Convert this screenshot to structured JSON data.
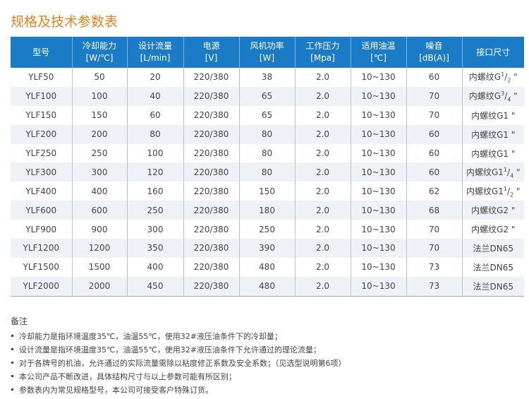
{
  "title": "规格及技术参数表",
  "headers": [
    [
      "型号",
      ""
    ],
    [
      "冷却能力",
      "[W/℃]"
    ],
    [
      "设计流量",
      "[L/min]"
    ],
    [
      "电源",
      "[V]"
    ],
    [
      "风机功率",
      "[W]"
    ],
    [
      "工作压力",
      "[Mpa]"
    ],
    [
      "适用油温",
      "[℃]"
    ],
    [
      "噪音",
      "[dB(A)]"
    ],
    [
      "接口尺寸",
      ""
    ]
  ],
  "rows": [
    {
      "model": "YLF50",
      "cool": "50",
      "flow": "20",
      "power": "220/380",
      "fan": "38",
      "pressure": "2.0",
      "temp": "10~130",
      "noise": "60",
      "port": {
        "pre": "内螺纹G",
        "num": "1",
        "den": "2",
        "post": " \""
      }
    },
    {
      "model": "YLF100",
      "cool": "100",
      "flow": "40",
      "power": "220/380",
      "fan": "65",
      "pressure": "2.0",
      "temp": "10~130",
      "noise": "70",
      "port": {
        "pre": "内螺纹G",
        "num": "3",
        "den": "4",
        "post": " \""
      }
    },
    {
      "model": "YLF150",
      "cool": "150",
      "flow": "60",
      "power": "220/380",
      "fan": "65",
      "pressure": "2.0",
      "temp": "10~130",
      "noise": "70",
      "port": {
        "pre": "内螺纹G1 \""
      }
    },
    {
      "model": "YLF200",
      "cool": "200",
      "flow": "80",
      "power": "220/380",
      "fan": "80",
      "pressure": "2.0",
      "temp": "10~130",
      "noise": "60",
      "port": {
        "pre": "内螺纹G1 \""
      }
    },
    {
      "model": "YLF250",
      "cool": "250",
      "flow": "100",
      "power": "220/380",
      "fan": "80",
      "pressure": "2.0",
      "temp": "10~130",
      "noise": "60",
      "port": {
        "pre": "内螺纹G1 \""
      }
    },
    {
      "model": "YLF300",
      "cool": "300",
      "flow": "120",
      "power": "220/380",
      "fan": "80",
      "pressure": "2.0",
      "temp": "10~130",
      "noise": "60",
      "port": {
        "pre": "内螺纹G1",
        "num": "1",
        "den": "4",
        "post": " \""
      }
    },
    {
      "model": "YLF400",
      "cool": "400",
      "flow": "160",
      "power": "220/380",
      "fan": "150",
      "pressure": "2.0",
      "temp": "10~130",
      "noise": "62",
      "port": {
        "pre": "内螺纹G1",
        "num": "1",
        "den": "2",
        "post": " \""
      }
    },
    {
      "model": "YLF600",
      "cool": "600",
      "flow": "250",
      "power": "220/380",
      "fan": "180",
      "pressure": "2.0",
      "temp": "10~130",
      "noise": "68",
      "port": {
        "pre": "内螺纹G2 \""
      }
    },
    {
      "model": "YLF900",
      "cool": "900",
      "flow": "300",
      "power": "220/380",
      "fan": "250",
      "pressure": "2.0",
      "temp": "10~130",
      "noise": "70",
      "port": {
        "pre": "内螺纹G2 \""
      }
    },
    {
      "model": "YLF1200",
      "cool": "1200",
      "flow": "350",
      "power": "220/380",
      "fan": "390",
      "pressure": "2.0",
      "temp": "10~130",
      "noise": "70",
      "port": {
        "pre": "法兰DN65"
      }
    },
    {
      "model": "YLF1500",
      "cool": "1500",
      "flow": "400",
      "power": "220/380",
      "fan": "480",
      "pressure": "2.0",
      "temp": "10~130",
      "noise": "73",
      "port": {
        "pre": "法兰DN65"
      }
    },
    {
      "model": "YLF2000",
      "cool": "2000",
      "flow": "450",
      "power": "220/380",
      "fan": "480",
      "pressure": "2.0",
      "temp": "10~130",
      "noise": "73",
      "port": {
        "pre": "法兰DN65"
      }
    }
  ],
  "notes": {
    "heading": "备注",
    "items": [
      "冷却能力是指环境温度35℃，油温55℃，使用32#液压油条件下的冷却量；",
      "设计流量是指环境温度35℃，油温55℃，使用32#液压油条件下允许通过的理论流量；",
      "对于各牌号的机油，允许通过的实际流量需除以粘度修正系数及安全系数；（见选型说明第6项）",
      "本公司产品不断改进，具体结构尺寸与以上参数可能有所区别；",
      "参数表内为常见规格型号，本公司可接受客户特殊订货。"
    ]
  },
  "colors": {
    "title": "#e8821e",
    "header": "#1a7bc6",
    "stripe": "#eef1f5"
  }
}
